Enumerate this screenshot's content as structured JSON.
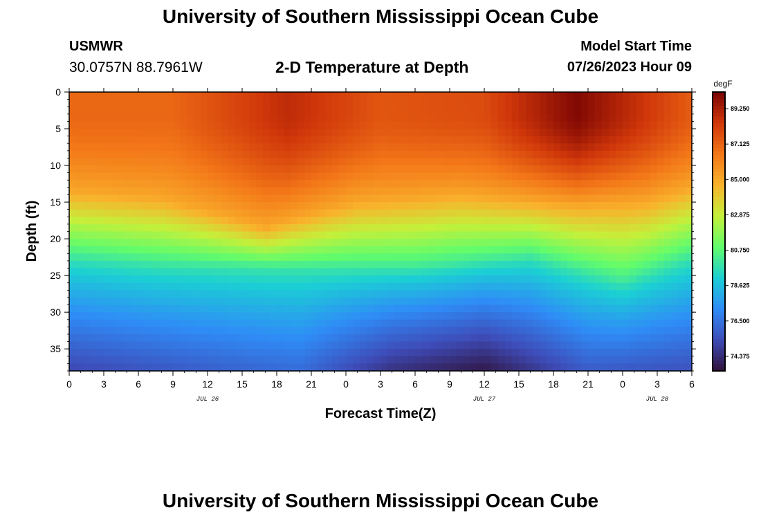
{
  "header": {
    "title": "University of Southern Mississippi Ocean Cube",
    "station": "USMWR",
    "coords": "30.0757N  88.7961W",
    "subtitle": "2-D Temperature at Depth",
    "model_start_label": "Model Start Time",
    "model_start_value": "07/26/2023 Hour 09"
  },
  "footer": {
    "title": "University of Southern Mississippi Ocean Cube"
  },
  "chart_data": {
    "type": "heatmap",
    "title": "2-D Temperature at Depth",
    "xlabel": "Forecast Time(Z)",
    "ylabel": "Depth (ft)",
    "x_tick_labels": [
      "0",
      "3",
      "6",
      "9",
      "12",
      "15",
      "18",
      "21",
      "0",
      "3",
      "6",
      "9",
      "12",
      "15",
      "18",
      "21",
      "0",
      "3",
      "6"
    ],
    "x_date_labels": [
      {
        "text": "JUL 26",
        "at_hour": 12
      },
      {
        "text": "JUL 27",
        "at_hour": 36
      },
      {
        "text": "JUL 28",
        "at_hour": 51
      }
    ],
    "x_range_hours": [
      0,
      54
    ],
    "y_tick_labels": [
      "0",
      "5",
      "10",
      "15",
      "20",
      "25",
      "30",
      "35"
    ],
    "y_range_ft": [
      0,
      38
    ],
    "y_inverted": true,
    "colorbar": {
      "units": "degF",
      "range": [
        73.5,
        90.25
      ],
      "tick_labels": [
        "89.250",
        "87.125",
        "85.000",
        "82.875",
        "80.750",
        "78.625",
        "76.500",
        "74.375"
      ],
      "colors": [
        "#30123b",
        "#3e4cb8",
        "#2f8cf7",
        "#1bcfd4",
        "#62fc6b",
        "#c4f03a",
        "#f9b22c",
        "#f37718",
        "#d0370a",
        "#7a0403"
      ]
    },
    "surface_temperature_degF": [
      {
        "hour": 0,
        "value": 87.0
      },
      {
        "hour": 9,
        "value": 87.0
      },
      {
        "hour": 19,
        "value": 88.8
      },
      {
        "hour": 27,
        "value": 87.5
      },
      {
        "hour": 36,
        "value": 87.8
      },
      {
        "hour": 44,
        "value": 90.1
      },
      {
        "hour": 54,
        "value": 87.3
      }
    ],
    "isotherm_85F_depth_ft": [
      {
        "hour": 0,
        "depth": 13.5
      },
      {
        "hour": 8,
        "depth": 14.5
      },
      {
        "hour": 17,
        "depth": 18.5
      },
      {
        "hour": 25,
        "depth": 15.0
      },
      {
        "hour": 34,
        "depth": 14.0
      },
      {
        "hour": 44,
        "depth": 15.5
      },
      {
        "hour": 50,
        "depth": 15.0
      },
      {
        "hour": 54,
        "depth": 13.0
      }
    ],
    "isotherm_80F_depth_ft": [
      {
        "hour": 0,
        "depth": 22.5
      },
      {
        "hour": 8,
        "depth": 23.5
      },
      {
        "hour": 18,
        "depth": 24.0
      },
      {
        "hour": 30,
        "depth": 24.0
      },
      {
        "hour": 40,
        "depth": 22.5
      },
      {
        "hour": 48,
        "depth": 26.0
      },
      {
        "hour": 54,
        "depth": 22.5
      }
    ],
    "bottom_temperature_degF": [
      {
        "hour": 0,
        "value": 75.2
      },
      {
        "hour": 10,
        "value": 75.8
      },
      {
        "hour": 20,
        "value": 76.3
      },
      {
        "hour": 28,
        "value": 74.5
      },
      {
        "hour": 36,
        "value": 73.7
      },
      {
        "hour": 45,
        "value": 75.8
      },
      {
        "hour": 54,
        "value": 75.5
      }
    ]
  }
}
